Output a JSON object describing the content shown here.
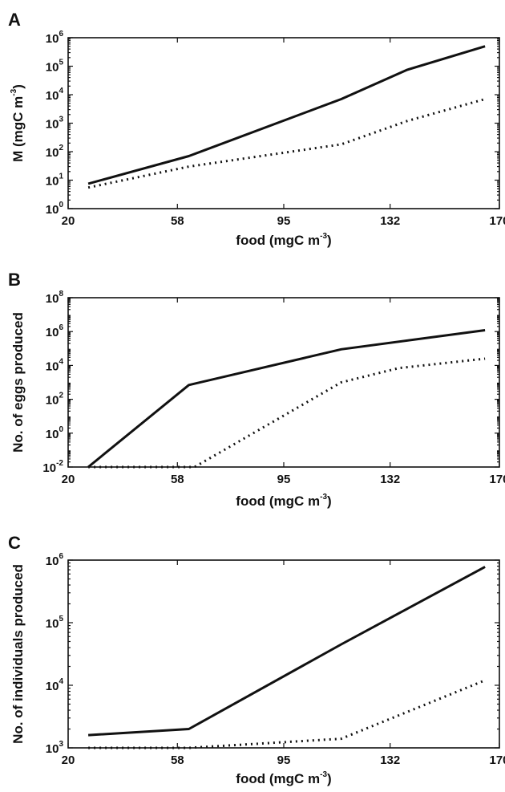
{
  "chart_data": [
    {
      "panel": "A",
      "type": "line",
      "ylabel": "M (mgC m-3)",
      "ylabel_base": "M (mgC m",
      "ylabel_sup": "-3",
      "ylabel_tail": ")",
      "xlabel": "food (mgC m-3)",
      "xlabel_base": "food (mgC m",
      "xlabel_sup": "-3",
      "xlabel_tail": ")",
      "yscale": "log",
      "xlim": [
        20,
        170
      ],
      "ylim": [
        1,
        1000000
      ],
      "x_ticks": [
        "20",
        "58",
        "95",
        "132",
        "170"
      ],
      "y_ticks": [
        {
          "base": "10",
          "exp": "0"
        },
        {
          "base": "10",
          "exp": "1"
        },
        {
          "base": "10",
          "exp": "2"
        },
        {
          "base": "10",
          "exp": "3"
        },
        {
          "base": "10",
          "exp": "4"
        },
        {
          "base": "10",
          "exp": "5"
        },
        {
          "base": "10",
          "exp": "6"
        }
      ],
      "series": [
        {
          "style": "solid",
          "x": [
            27,
            62,
            115,
            138,
            165
          ],
          "y": [
            7.5,
            70,
            7000,
            75000,
            500000
          ]
        },
        {
          "style": "dotted",
          "x": [
            27,
            62,
            115,
            138,
            165
          ],
          "y": [
            5.5,
            30,
            180,
            1200,
            7000
          ]
        }
      ]
    },
    {
      "panel": "B",
      "type": "line",
      "ylabel": "No. of eggs produced",
      "xlabel": "food (mgC m-3)",
      "xlabel_base": "food (mgC m",
      "xlabel_sup": "-3",
      "xlabel_tail": ")",
      "yscale": "log",
      "xlim": [
        20,
        170
      ],
      "ylim": [
        0.01,
        100000000
      ],
      "x_ticks": [
        "20",
        "58",
        "95",
        "132",
        "170"
      ],
      "y_ticks": [
        {
          "base": "10",
          "exp": "-2"
        },
        {
          "base": "10",
          "exp": "0"
        },
        {
          "base": "10",
          "exp": "2"
        },
        {
          "base": "10",
          "exp": "4"
        },
        {
          "base": "10",
          "exp": "6"
        },
        {
          "base": "10",
          "exp": "8"
        }
      ],
      "series": [
        {
          "style": "solid",
          "x": [
            27,
            62,
            115,
            165
          ],
          "y": [
            0.01,
            700,
            90000,
            1200000
          ]
        },
        {
          "style": "dotted",
          "x": [
            27,
            64,
            115,
            135,
            165
          ],
          "y": [
            0.01,
            0.01,
            1000,
            7000,
            25000
          ]
        }
      ]
    },
    {
      "panel": "C",
      "type": "line",
      "ylabel": "No. of individuals produced",
      "xlabel": "food (mgC m-3)",
      "xlabel_base": "food (mgC m",
      "xlabel_sup": "-3",
      "xlabel_tail": ")",
      "yscale": "log",
      "xlim": [
        20,
        170
      ],
      "ylim": [
        1000,
        1000000
      ],
      "x_ticks": [
        "20",
        "58",
        "95",
        "132",
        "170"
      ],
      "y_ticks": [
        {
          "base": "10",
          "exp": "3"
        },
        {
          "base": "10",
          "exp": "4"
        },
        {
          "base": "10",
          "exp": "5"
        },
        {
          "base": "10",
          "exp": "6"
        }
      ],
      "series": [
        {
          "style": "solid",
          "x": [
            27,
            62,
            115,
            165
          ],
          "y": [
            1600,
            2000,
            45000,
            780000
          ]
        },
        {
          "style": "dotted",
          "x": [
            27,
            62,
            115,
            165
          ],
          "y": [
            1000,
            1000,
            1400,
            12000
          ]
        }
      ]
    }
  ]
}
